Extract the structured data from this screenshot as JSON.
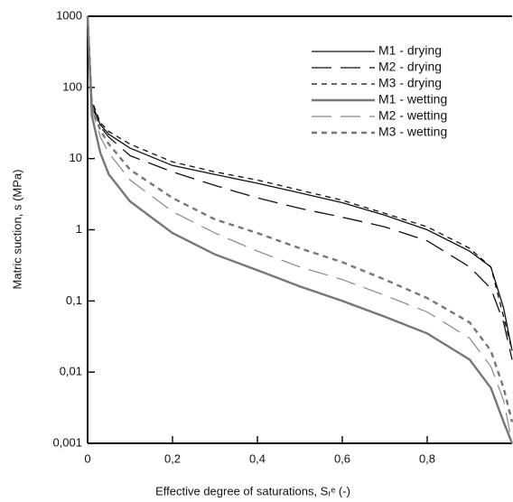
{
  "chart_data": {
    "type": "line",
    "xlabel": "Effective degree of saturations, Sᵣᵉ (-)",
    "ylabel": "Matric suction, s (MPa)",
    "x": [
      0,
      0.01,
      0.03,
      0.05,
      0.1,
      0.2,
      0.3,
      0.4,
      0.5,
      0.6,
      0.7,
      0.8,
      0.9,
      0.95,
      0.98,
      1.0
    ],
    "series": [
      {
        "name": "M1 - drying",
        "color": "#111111",
        "width": 1.3,
        "dash": "",
        "values": [
          1000,
          60,
          30,
          22,
          14,
          8,
          6,
          4.5,
          3.3,
          2.4,
          1.6,
          1.0,
          0.5,
          0.3,
          0.08,
          0.02
        ]
      },
      {
        "name": "M2 - drying",
        "color": "#111111",
        "width": 1.3,
        "dash": "22 10",
        "values": [
          1000,
          55,
          28,
          20,
          11,
          6.5,
          4.2,
          2.8,
          2.0,
          1.5,
          1.1,
          0.7,
          0.3,
          0.15,
          0.05,
          0.015
        ]
      },
      {
        "name": "M3 - drying",
        "color": "#111111",
        "width": 1.3,
        "dash": "6 5",
        "values": [
          1000,
          65,
          32,
          24,
          16,
          9,
          6.5,
          5,
          3.6,
          2.6,
          1.7,
          1.1,
          0.55,
          0.3,
          0.06,
          0.02
        ]
      },
      {
        "name": "M1 - wetting",
        "color": "#777777",
        "width": 2.4,
        "dash": "",
        "values": [
          1000,
          40,
          12,
          6,
          2.5,
          0.9,
          0.45,
          0.27,
          0.16,
          0.1,
          0.06,
          0.035,
          0.015,
          0.006,
          0.002,
          0.001
        ]
      },
      {
        "name": "M2 - wetting",
        "color": "#888888",
        "width": 1.2,
        "dash": "22 10",
        "values": [
          1000,
          50,
          20,
          12,
          5,
          1.8,
          0.9,
          0.5,
          0.3,
          0.2,
          0.12,
          0.07,
          0.03,
          0.012,
          0.004,
          0.001
        ]
      },
      {
        "name": "M3 - wetting",
        "color": "#777777",
        "width": 2.4,
        "dash": "6 5",
        "values": [
          1000,
          55,
          25,
          16,
          7,
          2.8,
          1.4,
          0.9,
          0.55,
          0.35,
          0.2,
          0.11,
          0.05,
          0.02,
          0.006,
          0.002
        ]
      }
    ],
    "xlim": [
      0,
      1
    ],
    "ylim": [
      0.001,
      1000
    ],
    "log_y": true,
    "xticks": [
      {
        "value": 0,
        "label": "0"
      },
      {
        "value": 0.2,
        "label": "0,2"
      },
      {
        "value": 0.4,
        "label": "0,4"
      },
      {
        "value": 0.6,
        "label": "0,6"
      },
      {
        "value": 0.8,
        "label": "0,8"
      }
    ],
    "yticks": [
      {
        "value": 0.001,
        "label": "0,001"
      },
      {
        "value": 0.01,
        "label": "0,01"
      },
      {
        "value": 0.1,
        "label": "0,1"
      },
      1,
      10,
      100,
      1000
    ],
    "legend": "upper right",
    "grid": false
  }
}
